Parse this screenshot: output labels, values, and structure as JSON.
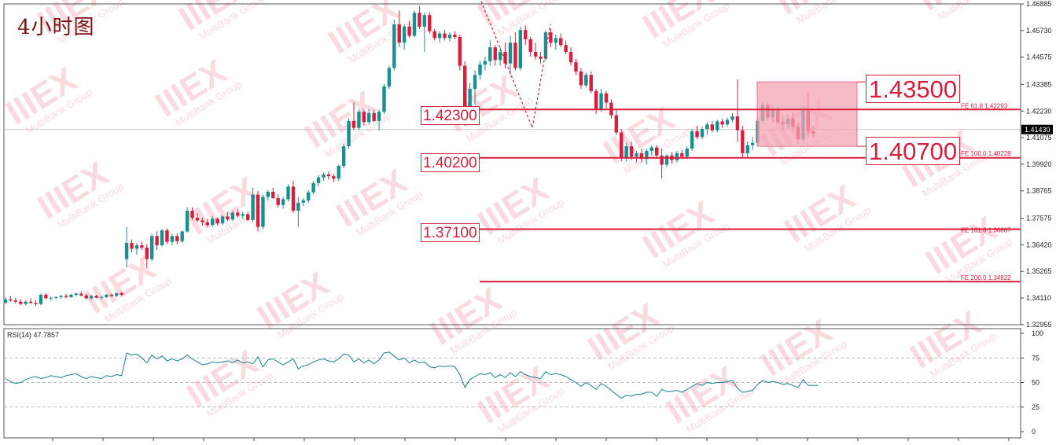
{
  "header": {
    "timeframe_label": "4小时图",
    "watermark_logo": "IIIEX",
    "watermark_sub": "MultiBank Group"
  },
  "chart_data": [
    {
      "type": "candlestick",
      "title": "4小时图",
      "ylim": [
        1.3295,
        1.46885
      ],
      "y_ticks": [
        "1.46885",
        "1.45730",
        "1.44575",
        "1.43385",
        "1.42230",
        "1.41075",
        "1.39920",
        "1.38765",
        "1.37575",
        "1.36420",
        "1.35265",
        "1.34110",
        "1.32955"
      ],
      "current_price": "1.41430",
      "colors": {
        "up": "#1a8f8f",
        "down": "#d81e3c",
        "level": "#d81e3c",
        "zone": "#f4a3b4"
      },
      "candles": [
        [
          1.339,
          1.3415,
          1.3385,
          1.3405
        ],
        [
          1.3405,
          1.342,
          1.3395,
          1.34
        ],
        [
          1.34,
          1.3412,
          1.3388,
          1.3395
        ],
        [
          1.3395,
          1.3405,
          1.338,
          1.3385
        ],
        [
          1.3385,
          1.34,
          1.3378,
          1.3395
        ],
        [
          1.3395,
          1.341,
          1.3385,
          1.339
        ],
        [
          1.339,
          1.3402,
          1.3375,
          1.3385
        ],
        [
          1.3385,
          1.343,
          1.338,
          1.3425
        ],
        [
          1.3425,
          1.3432,
          1.3405,
          1.341
        ],
        [
          1.341,
          1.3418,
          1.34,
          1.3412
        ],
        [
          1.3412,
          1.342,
          1.3405,
          1.3415
        ],
        [
          1.3415,
          1.3425,
          1.3408,
          1.342
        ],
        [
          1.342,
          1.3428,
          1.341,
          1.3415
        ],
        [
          1.3415,
          1.3428,
          1.3412,
          1.3425
        ],
        [
          1.3425,
          1.3435,
          1.3418,
          1.343
        ],
        [
          1.343,
          1.344,
          1.3418,
          1.3422
        ],
        [
          1.3422,
          1.3428,
          1.3405,
          1.341
        ],
        [
          1.341,
          1.3425,
          1.3402,
          1.342
        ],
        [
          1.342,
          1.3425,
          1.341,
          1.3412
        ],
        [
          1.3412,
          1.342,
          1.3405,
          1.3415
        ],
        [
          1.3415,
          1.3428,
          1.341,
          1.3425
        ],
        [
          1.3425,
          1.343,
          1.3415,
          1.342
        ],
        [
          1.342,
          1.3435,
          1.3415,
          1.3432
        ],
        [
          1.3432,
          1.3438,
          1.342,
          1.3425
        ],
        [
          1.358,
          1.372,
          1.3545,
          1.365
        ],
        [
          1.365,
          1.3665,
          1.361,
          1.3625
        ],
        [
          1.3625,
          1.365,
          1.36,
          1.364
        ],
        [
          1.364,
          1.3655,
          1.362,
          1.363
        ],
        [
          1.363,
          1.3645,
          1.354,
          1.358
        ],
        [
          1.358,
          1.369,
          1.357,
          1.368
        ],
        [
          1.368,
          1.37,
          1.362,
          1.364
        ],
        [
          1.364,
          1.371,
          1.3635,
          1.3705
        ],
        [
          1.3705,
          1.3712,
          1.3645,
          1.3655
        ],
        [
          1.3655,
          1.369,
          1.364,
          1.368
        ],
        [
          1.368,
          1.3692,
          1.3645,
          1.3658
        ],
        [
          1.3658,
          1.3705,
          1.365,
          1.37
        ],
        [
          1.37,
          1.3805,
          1.3695,
          1.379
        ],
        [
          1.379,
          1.3805,
          1.375,
          1.376
        ],
        [
          1.376,
          1.378,
          1.374,
          1.3748
        ],
        [
          1.3748,
          1.376,
          1.3725,
          1.374
        ],
        [
          1.374,
          1.3755,
          1.372,
          1.3728
        ],
        [
          1.3728,
          1.3765,
          1.372,
          1.3755
        ],
        [
          1.3755,
          1.3762,
          1.3725,
          1.3735
        ],
        [
          1.3735,
          1.377,
          1.3728,
          1.3765
        ],
        [
          1.3765,
          1.3785,
          1.3745,
          1.3752
        ],
        [
          1.3752,
          1.379,
          1.3745,
          1.3782
        ],
        [
          1.3782,
          1.3795,
          1.376,
          1.3768
        ],
        [
          1.3768,
          1.3785,
          1.3755,
          1.3775
        ],
        [
          1.3775,
          1.3785,
          1.3745,
          1.375
        ],
        [
          1.375,
          1.389,
          1.374,
          1.386
        ],
        [
          1.386,
          1.3875,
          1.37,
          1.372
        ],
        [
          1.372,
          1.386,
          1.371,
          1.385
        ],
        [
          1.385,
          1.388,
          1.3835,
          1.3872
        ],
        [
          1.3872,
          1.389,
          1.384,
          1.3845
        ],
        [
          1.3845,
          1.3862,
          1.3805,
          1.3815
        ],
        [
          1.3815,
          1.385,
          1.38,
          1.384
        ],
        [
          1.384,
          1.3905,
          1.383,
          1.3895
        ],
        [
          1.3895,
          1.392,
          1.378,
          1.379
        ],
        [
          1.379,
          1.385,
          1.372,
          1.3825
        ],
        [
          1.3825,
          1.3845,
          1.381,
          1.3835
        ],
        [
          1.3835,
          1.388,
          1.3825,
          1.387
        ],
        [
          1.387,
          1.392,
          1.386,
          1.391
        ],
        [
          1.391,
          1.3945,
          1.3895,
          1.3935
        ],
        [
          1.3935,
          1.3955,
          1.392,
          1.3948
        ],
        [
          1.3948,
          1.396,
          1.3925,
          1.394
        ],
        [
          1.394,
          1.395,
          1.3915,
          1.393
        ],
        [
          1.393,
          1.399,
          1.392,
          1.3985
        ],
        [
          1.3985,
          1.408,
          1.3975,
          1.407
        ],
        [
          1.407,
          1.419,
          1.406,
          1.418
        ],
        [
          1.418,
          1.426,
          1.414,
          1.415
        ],
        [
          1.415,
          1.423,
          1.414,
          1.422
        ],
        [
          1.422,
          1.4232,
          1.416,
          1.4175
        ],
        [
          1.4175,
          1.423,
          1.4165,
          1.4215
        ],
        [
          1.4215,
          1.4228,
          1.4175,
          1.418
        ],
        [
          1.418,
          1.423,
          1.414,
          1.422
        ],
        [
          1.422,
          1.434,
          1.421,
          1.433
        ],
        [
          1.433,
          1.442,
          1.432,
          1.441
        ],
        [
          1.441,
          1.462,
          1.44,
          1.46
        ],
        [
          1.46,
          1.466,
          1.45,
          1.452
        ],
        [
          1.452,
          1.46,
          1.449,
          1.459
        ],
        [
          1.459,
          1.4615,
          1.454,
          1.455
        ],
        [
          1.455,
          1.466,
          1.4545,
          1.465
        ],
        [
          1.465,
          1.468,
          1.458,
          1.459
        ],
        [
          1.459,
          1.465,
          1.448,
          1.464
        ],
        [
          1.464,
          1.4652,
          1.456,
          1.457
        ],
        [
          1.457,
          1.458,
          1.453,
          1.454
        ],
        [
          1.454,
          1.457,
          1.452,
          1.456
        ],
        [
          1.456,
          1.4575,
          1.453,
          1.454
        ],
        [
          1.454,
          1.4565,
          1.4525,
          1.4555
        ],
        [
          1.4555,
          1.457,
          1.4535,
          1.4545
        ],
        [
          1.4545,
          1.4555,
          1.44,
          1.442
        ],
        [
          1.442,
          1.444,
          1.416,
          1.42
        ],
        [
          1.42,
          1.4345,
          1.418,
          1.432
        ],
        [
          1.432,
          1.44,
          1.425,
          1.438
        ],
        [
          1.438,
          1.444,
          1.436,
          1.4425
        ],
        [
          1.4425,
          1.446,
          1.44,
          1.444
        ],
        [
          1.444,
          1.453,
          1.442,
          1.45
        ],
        [
          1.45,
          1.451,
          1.442,
          1.4445
        ],
        [
          1.4445,
          1.45,
          1.442,
          1.448
        ],
        [
          1.448,
          1.452,
          1.441,
          1.443
        ],
        [
          1.443,
          1.455,
          1.438,
          1.452
        ],
        [
          1.452,
          1.4565,
          1.44,
          1.441
        ],
        [
          1.441,
          1.459,
          1.44,
          1.4575
        ],
        [
          1.4575,
          1.4595,
          1.451,
          1.4535
        ],
        [
          1.4535,
          1.4545,
          1.446,
          1.448
        ],
        [
          1.448,
          1.452,
          1.4445,
          1.446
        ],
        [
          1.446,
          1.448,
          1.443,
          1.445
        ],
        [
          1.445,
          1.4575,
          1.444,
          1.4565
        ],
        [
          1.4565,
          1.458,
          1.45,
          1.452
        ],
        [
          1.452,
          1.4555,
          1.449,
          1.454
        ],
        [
          1.454,
          1.456,
          1.45,
          1.451
        ],
        [
          1.451,
          1.453,
          1.447,
          1.448
        ],
        [
          1.448,
          1.45,
          1.442,
          1.4435
        ],
        [
          1.4435,
          1.445,
          1.438,
          1.4395
        ],
        [
          1.4395,
          1.441,
          1.432,
          1.4335
        ],
        [
          1.4335,
          1.439,
          1.4325,
          1.438
        ],
        [
          1.438,
          1.4395,
          1.43,
          1.431
        ],
        [
          1.431,
          1.432,
          1.421,
          1.423
        ],
        [
          1.423,
          1.432,
          1.422,
          1.43
        ],
        [
          1.43,
          1.431,
          1.423,
          1.426
        ],
        [
          1.426,
          1.4275,
          1.419,
          1.4205
        ],
        [
          1.4205,
          1.423,
          1.412,
          1.413
        ],
        [
          1.413,
          1.4145,
          1.4005,
          1.402
        ],
        [
          1.402,
          1.4085,
          1.4005,
          1.407
        ],
        [
          1.407,
          1.409,
          1.401,
          1.4025
        ],
        [
          1.4025,
          1.405,
          1.4,
          1.404
        ],
        [
          1.404,
          1.406,
          1.4,
          1.4015
        ],
        [
          1.4015,
          1.406,
          1.399,
          1.405
        ],
        [
          1.405,
          1.4075,
          1.403,
          1.4065
        ],
        [
          1.4065,
          1.4075,
          1.4015,
          1.403
        ],
        [
          1.403,
          1.406,
          1.393,
          1.399
        ],
        [
          1.399,
          1.4035,
          1.398,
          1.403
        ],
        [
          1.403,
          1.4045,
          1.3995,
          1.401
        ],
        [
          1.401,
          1.405,
          1.4,
          1.404
        ],
        [
          1.404,
          1.4055,
          1.4015,
          1.4025
        ],
        [
          1.4025,
          1.407,
          1.4015,
          1.406
        ],
        [
          1.406,
          1.4145,
          1.405,
          1.4135
        ],
        [
          1.4135,
          1.416,
          1.41,
          1.411
        ],
        [
          1.411,
          1.4155,
          1.41,
          1.4145
        ],
        [
          1.4145,
          1.4175,
          1.412,
          1.4165
        ],
        [
          1.4165,
          1.418,
          1.413,
          1.414
        ],
        [
          1.414,
          1.4185,
          1.413,
          1.4178
        ],
        [
          1.4178,
          1.419,
          1.415,
          1.4165
        ],
        [
          1.4165,
          1.4195,
          1.4155,
          1.4185
        ],
        [
          1.4185,
          1.4215,
          1.4175,
          1.42
        ],
        [
          1.42,
          1.436,
          1.409,
          1.414
        ],
        [
          1.414,
          1.416,
          1.402,
          1.404
        ],
        [
          1.404,
          1.409,
          1.402,
          1.4075
        ],
        [
          1.4075,
          1.411,
          1.4055,
          1.4085
        ],
        [
          1.4085,
          1.419,
          1.4075,
          1.418
        ],
        [
          1.418,
          1.4265,
          1.417,
          1.425
        ],
        [
          1.425,
          1.426,
          1.418,
          1.4195
        ],
        [
          1.4195,
          1.4245,
          1.4175,
          1.423
        ],
        [
          1.423,
          1.4242,
          1.4165,
          1.4175
        ],
        [
          1.4175,
          1.42,
          1.414,
          1.4165
        ],
        [
          1.4165,
          1.421,
          1.415,
          1.419
        ],
        [
          1.419,
          1.4215,
          1.414,
          1.4155
        ],
        [
          1.4155,
          1.4175,
          1.408,
          1.41
        ],
        [
          1.41,
          1.4245,
          1.409,
          1.4225
        ],
        [
          1.4225,
          1.431,
          1.411,
          1.4135
        ],
        [
          1.4135,
          1.416,
          1.411,
          1.4125
        ]
      ],
      "levels": [
        {
          "label": "1.42300",
          "price": 1.423
        },
        {
          "label": "1.40200",
          "price": 1.402
        },
        {
          "label": "1.37100",
          "price": 1.371
        }
      ],
      "fib_lines": [
        {
          "text": "FE 61.8  1.42293",
          "price": 1.42293
        },
        {
          "text": "FE 100.0  1.40228",
          "price": 1.40228
        },
        {
          "text": "FE 161.8  1.36887",
          "price": 1.36887
        },
        {
          "text": "FE 200.0  1.34822",
          "price": 1.34822
        }
      ],
      "zone": {
        "top_label": "1.43500",
        "bottom_label": "1.40700",
        "top": 1.435,
        "bottom": 1.407
      },
      "fib_anchor_path": [
        1.47,
        1.415,
        1.46
      ]
    },
    {
      "type": "line",
      "title": "RSI(14) 47.7857",
      "ylim": [
        0,
        100
      ],
      "y_ticks": [
        "100",
        "75",
        "50",
        "25",
        "0"
      ],
      "levels": [
        75,
        50,
        25
      ],
      "values": [
        54,
        51,
        49,
        50,
        53,
        55,
        56,
        54,
        55,
        57,
        56,
        55,
        57,
        58,
        59,
        56,
        54,
        56,
        55,
        54,
        57,
        56,
        58,
        57,
        80,
        78,
        79,
        75,
        70,
        78,
        74,
        77,
        72,
        74,
        72,
        74,
        78,
        74,
        71,
        68,
        69,
        71,
        70,
        71,
        72,
        70,
        73,
        70,
        71,
        69,
        76,
        66,
        73,
        74,
        71,
        68,
        71,
        74,
        64,
        67,
        68,
        71,
        73,
        74,
        72,
        71,
        74,
        79,
        78,
        71,
        74,
        70,
        73,
        69,
        73,
        80,
        81,
        77,
        73,
        75,
        70,
        73,
        70,
        71,
        66,
        65,
        67,
        66,
        67,
        66,
        58,
        45,
        53,
        56,
        59,
        58,
        60,
        55,
        58,
        55,
        60,
        56,
        61,
        58,
        56,
        55,
        54,
        61,
        58,
        59,
        58,
        56,
        53,
        50,
        46,
        50,
        47,
        43,
        49,
        46,
        42,
        38,
        34,
        37,
        36,
        38,
        38,
        40,
        40,
        36,
        43,
        41,
        41,
        42,
        40,
        43,
        46,
        49,
        47,
        50,
        49,
        50,
        50,
        51,
        52,
        44,
        40,
        41,
        42,
        48,
        52,
        50,
        51,
        50,
        48,
        49,
        47,
        45,
        53,
        47,
        47,
        47
      ]
    }
  ]
}
